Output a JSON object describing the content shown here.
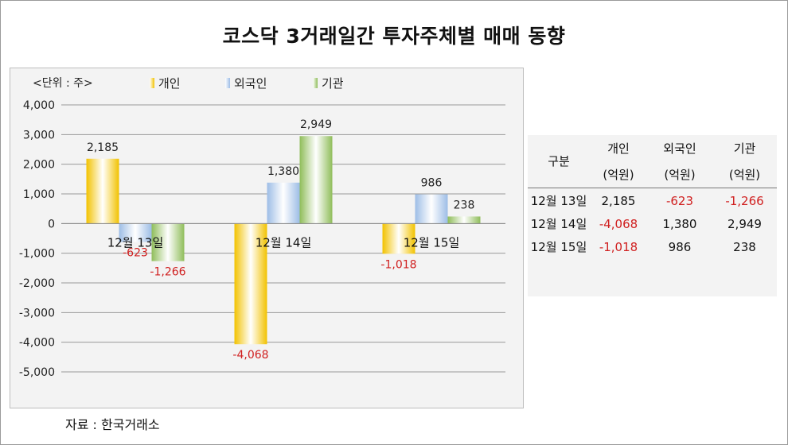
{
  "title": "코스닥 3거래일간 투자주체별 매매 동향",
  "source": "자료 : 한국거래소",
  "chart_data": {
    "type": "bar",
    "unit_label": "<단위 : 주>",
    "categories": [
      "12월 13일",
      "12월 14일",
      "12월 15일"
    ],
    "series": [
      {
        "name": "개인",
        "values": [
          2185,
          -4068,
          -1018
        ],
        "color": "#f2c200"
      },
      {
        "name": "외국인",
        "values": [
          -623,
          1380,
          986
        ],
        "color": "#9dbde6"
      },
      {
        "name": "기관",
        "values": [
          -1266,
          2949,
          238
        ],
        "color": "#8fbd5a"
      }
    ],
    "data_labels": [
      [
        "2,185",
        "-623",
        "-1,266"
      ],
      [
        "-4,068",
        "1,380",
        "2,949"
      ],
      [
        "-1,018",
        "986",
        "238"
      ]
    ],
    "yticks": [
      "4,000",
      "3,000",
      "2,000",
      "1,000",
      "0",
      "-1,000",
      "-2,000",
      "-3,000",
      "-4,000",
      "-5,000"
    ],
    "ylim": [
      -5000,
      4000
    ],
    "grid": true,
    "legend_position": "top",
    "negative_label_color": "#d02020"
  },
  "table": {
    "header": [
      "구분",
      "개인",
      "외국인",
      "기관"
    ],
    "unit": "(억원)",
    "rows": [
      {
        "label": "12월 13일",
        "values": [
          "2,185",
          "-623",
          "-1,266"
        ]
      },
      {
        "label": "12월 14일",
        "values": [
          "-4,068",
          "1,380",
          "2,949"
        ]
      },
      {
        "label": "12월 15일",
        "values": [
          "-1,018",
          "986",
          "238"
        ]
      }
    ]
  }
}
